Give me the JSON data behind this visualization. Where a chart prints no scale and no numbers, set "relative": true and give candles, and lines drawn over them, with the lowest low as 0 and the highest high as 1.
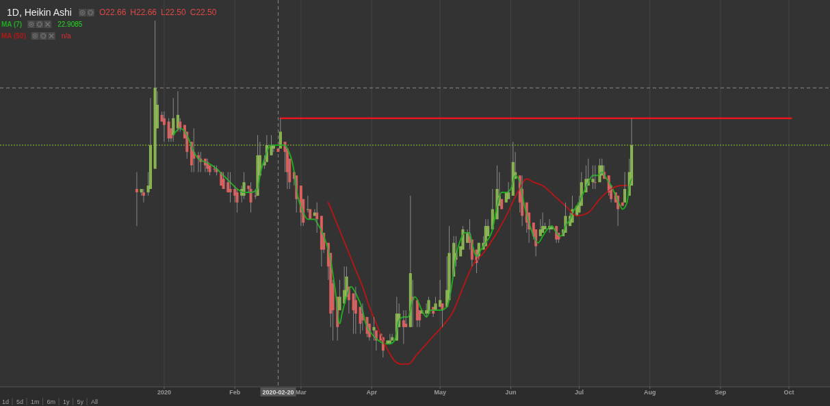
{
  "chart_data": {
    "type": "candlestick",
    "title": "1D, Heikin Ashi",
    "relative": true,
    "xlim": [
      "2019-10-21",
      "2020-10-19"
    ],
    "xticks": [
      {
        "value": "2020-01-01",
        "label": "2020"
      },
      {
        "value": "2020-02-01",
        "label": "Feb"
      },
      {
        "value": "2020-03-01",
        "label": "Mar"
      },
      {
        "value": "2020-04-01",
        "label": "Apr"
      },
      {
        "value": "2020-05-01",
        "label": "May"
      },
      {
        "value": "2020-06-01",
        "label": "Jun"
      },
      {
        "value": "2020-07-01",
        "label": "Jul"
      },
      {
        "value": "2020-08-01",
        "label": "Aug"
      },
      {
        "value": "2020-09-01",
        "label": "Sep"
      },
      {
        "value": "2020-10-01",
        "label": "Oct"
      }
    ],
    "grid": "x",
    "legend": "top left",
    "x": [
      "2019-12-20",
      "2019-12-22",
      "2019-12-23",
      "2019-12-25",
      "2019-12-26",
      "2019-12-28",
      "2019-12-29",
      "2019-12-31",
      "2020-01-01",
      "2020-01-03",
      "2020-01-04",
      "2020-01-05",
      "2020-01-07",
      "2020-01-08",
      "2020-01-10",
      "2020-01-11",
      "2020-01-13",
      "2020-01-14",
      "2020-01-16",
      "2020-01-17",
      "2020-01-19",
      "2020-01-20",
      "2020-01-21",
      "2020-01-23",
      "2020-01-24",
      "2020-01-26",
      "2020-01-27",
      "2020-01-29",
      "2020-01-30",
      "2020-02-01",
      "2020-02-02",
      "2020-02-04",
      "2020-02-05",
      "2020-02-07",
      "2020-02-08",
      "2020-02-10",
      "2020-02-11",
      "2020-02-12",
      "2020-02-14",
      "2020-02-15",
      "2020-02-17",
      "2020-02-18",
      "2020-02-20",
      "2020-02-21",
      "2020-02-23",
      "2020-02-24",
      "2020-02-25",
      "2020-02-27",
      "2020-02-28",
      "2020-03-01",
      "2020-03-02",
      "2020-03-04",
      "2020-03-05",
      "2020-03-07",
      "2020-03-08",
      "2020-03-10",
      "2020-03-11",
      "2020-03-13",
      "2020-03-14",
      "2020-03-15",
      "2020-03-17",
      "2020-03-18",
      "2020-03-20",
      "2020-03-21",
      "2020-03-22",
      "2020-03-24",
      "2020-03-25",
      "2020-03-27",
      "2020-03-28",
      "2020-03-30",
      "2020-03-31",
      "2020-04-02",
      "2020-04-03",
      "2020-04-05",
      "2020-04-06",
      "2020-04-08",
      "2020-04-09",
      "2020-04-10",
      "2020-04-12",
      "2020-04-13",
      "2020-04-15",
      "2020-04-16",
      "2020-04-18",
      "2020-04-19",
      "2020-04-21",
      "2020-04-22",
      "2020-04-23",
      "2020-04-25",
      "2020-04-26",
      "2020-04-28",
      "2020-04-29",
      "2020-05-01",
      "2020-05-02",
      "2020-05-04",
      "2020-05-05",
      "2020-05-07",
      "2020-05-08",
      "2020-05-10",
      "2020-05-11",
      "2020-05-13",
      "2020-05-14",
      "2020-05-15",
      "2020-05-17",
      "2020-05-18",
      "2020-05-20",
      "2020-05-21",
      "2020-05-22",
      "2020-05-24",
      "2020-05-26",
      "2020-05-27",
      "2020-05-28",
      "2020-05-30",
      "2020-05-31",
      "2020-06-02",
      "2020-06-03",
      "2020-06-05",
      "2020-06-06",
      "2020-06-08",
      "2020-06-09",
      "2020-06-11",
      "2020-06-12",
      "2020-06-14",
      "2020-06-15",
      "2020-06-16",
      "2020-06-18",
      "2020-06-19",
      "2020-06-21",
      "2020-06-22",
      "2020-06-24",
      "2020-06-25",
      "2020-06-27",
      "2020-06-28",
      "2020-06-30",
      "2020-07-01",
      "2020-07-02",
      "2020-07-04",
      "2020-07-05",
      "2020-07-07",
      "2020-07-08",
      "2020-07-10",
      "2020-07-11",
      "2020-07-12",
      "2020-07-14",
      "2020-07-15",
      "2020-07-17",
      "2020-07-18",
      "2020-07-20",
      "2020-07-21",
      "2020-07-23",
      "2020-07-24"
    ],
    "ohlc": [
      [
        0.5,
        0.55,
        0.39,
        0.49
      ],
      [
        0.49,
        0.5,
        0.48,
        0.5
      ],
      [
        0.49,
        0.5,
        0.46,
        0.48
      ],
      [
        0.49,
        0.55,
        0.48,
        0.51
      ],
      [
        0.5,
        0.77,
        0.5,
        0.63
      ],
      [
        0.56,
        1,
        0.56,
        0.8
      ],
      [
        0.68,
        0.79,
        0.68,
        0.75
      ],
      [
        0.72,
        0.73,
        0.7,
        0.7
      ],
      [
        0.71,
        0.73,
        0.64,
        0.69
      ],
      [
        0.7,
        0.71,
        0.64,
        0.65
      ],
      [
        0.68,
        0.68,
        0.64,
        0.65
      ],
      [
        0.66,
        0.77,
        0.64,
        0.71
      ],
      [
        0.68,
        0.79,
        0.67,
        0.72
      ],
      [
        0.7,
        0.71,
        0.67,
        0.68
      ],
      [
        0.69,
        0.69,
        0.65,
        0.65
      ],
      [
        0.67,
        0.67,
        0.59,
        0.61
      ],
      [
        0.64,
        0.64,
        0.55,
        0.57
      ],
      [
        0.61,
        0.68,
        0.55,
        0.59
      ],
      [
        0.6,
        0.61,
        0.55,
        0.59
      ],
      [
        0.59,
        0.61,
        0.55,
        0.58
      ],
      [
        0.59,
        0.59,
        0.55,
        0.57
      ],
      [
        0.58,
        0.59,
        0.55,
        0.56
      ],
      [
        0.57,
        0.57,
        0.54,
        0.55
      ],
      [
        0.56,
        0.57,
        0.55,
        0.56
      ],
      [
        0.56,
        0.57,
        0.54,
        0.55
      ],
      [
        0.55,
        0.55,
        0.51,
        0.51
      ],
      [
        0.53,
        0.55,
        0.5,
        0.5
      ],
      [
        0.52,
        0.55,
        0.49,
        0.49
      ],
      [
        0.5,
        0.55,
        0.46,
        0.49
      ],
      [
        0.5,
        0.51,
        0.46,
        0.48
      ],
      [
        0.49,
        0.5,
        0.43,
        0.46
      ],
      [
        0.48,
        0.51,
        0.46,
        0.5
      ],
      [
        0.48,
        0.55,
        0.47,
        0.52
      ],
      [
        0.51,
        0.51,
        0.49,
        0.5
      ],
      [
        0.5,
        0.52,
        0.43,
        0.46
      ],
      [
        0.48,
        0.5,
        0.47,
        0.48
      ],
      [
        0.48,
        0.66,
        0.48,
        0.6
      ],
      [
        0.54,
        0.64,
        0.54,
        0.6
      ],
      [
        0.57,
        0.6,
        0.56,
        0.58
      ],
      [
        0.58,
        0.66,
        0.58,
        0.63
      ],
      [
        0.6,
        0.66,
        0.6,
        0.63
      ],
      [
        0.62,
        0.63,
        0.61,
        0.63
      ],
      [
        0.62,
        0.62,
        0.61,
        0.61
      ],
      [
        0.62,
        0.71,
        0.62,
        0.67
      ],
      [
        0.64,
        0.64,
        0.55,
        0.61
      ],
      [
        0.62,
        0.62,
        0.5,
        0.55
      ],
      [
        0.59,
        0.59,
        0.5,
        0.52
      ],
      [
        0.55,
        0.55,
        0.51,
        0.53
      ],
      [
        0.54,
        0.54,
        0.43,
        0.47
      ],
      [
        0.51,
        0.51,
        0.39,
        0.43
      ],
      [
        0.47,
        0.47,
        0.39,
        0.4
      ],
      [
        0.44,
        0.48,
        0.43,
        0.44
      ],
      [
        0.44,
        0.44,
        0.41,
        0.41
      ],
      [
        0.42,
        0.44,
        0.42,
        0.43
      ],
      [
        0.43,
        0.46,
        0.37,
        0.41
      ],
      [
        0.42,
        0.42,
        0.27,
        0.32
      ],
      [
        0.37,
        0.37,
        0.31,
        0.32
      ],
      [
        0.34,
        0.34,
        0.23,
        0.27
      ],
      [
        0.31,
        0.31,
        0.09,
        0.13
      ],
      [
        0.22,
        0.23,
        0.05,
        0.14
      ],
      [
        0.18,
        0.18,
        0.05,
        0.09
      ],
      [
        0.14,
        0.23,
        0.14,
        0.18
      ],
      [
        0.16,
        0.27,
        0.16,
        0.2
      ],
      [
        0.18,
        0.27,
        0.18,
        0.24
      ],
      [
        0.21,
        0.21,
        0.13,
        0.17
      ],
      [
        0.19,
        0.19,
        0.07,
        0.14
      ],
      [
        0.17,
        0.21,
        0.07,
        0.13
      ],
      [
        0.15,
        0.15,
        0.07,
        0.1
      ],
      [
        0.13,
        0.16,
        0.08,
        0.11
      ],
      [
        0.12,
        0.12,
        0.06,
        0.07
      ],
      [
        0.1,
        0.1,
        0.05,
        0.06
      ],
      [
        0.08,
        0.12,
        0.05,
        0.09
      ],
      [
        0.08,
        0.08,
        0.02,
        0.05
      ],
      [
        0.07,
        0.07,
        0.05,
        0.05
      ],
      [
        0.06,
        0.06,
        0,
        0.02
      ],
      [
        0.04,
        0.05,
        0.04,
        0.05
      ],
      [
        0.04,
        0.07,
        0.04,
        0.05
      ],
      [
        0.05,
        0.07,
        0.05,
        0.06
      ],
      [
        0.05,
        0.18,
        0.05,
        0.13
      ],
      [
        0.09,
        0.16,
        0.09,
        0.13
      ],
      [
        0.11,
        0.14,
        0.04,
        0.09
      ],
      [
        0.1,
        0.14,
        0.09,
        0.09
      ],
      [
        0.09,
        0.48,
        0.09,
        0.25
      ],
      [
        0.18,
        0.23,
        0.09,
        0.17
      ],
      [
        0.17,
        0.17,
        0.09,
        0.11
      ],
      [
        0.14,
        0.14,
        0.09,
        0.11
      ],
      [
        0.13,
        0.14,
        0.13,
        0.14
      ],
      [
        0.13,
        0.16,
        0.12,
        0.14
      ],
      [
        0.13,
        0.18,
        0.13,
        0.17
      ],
      [
        0.15,
        0.15,
        0.12,
        0.13
      ],
      [
        0.14,
        0.18,
        0.14,
        0.16
      ],
      [
        0.15,
        0.23,
        0.15,
        0.17
      ],
      [
        0.16,
        0.16,
        0.09,
        0.14
      ],
      [
        0.15,
        0.3,
        0.15,
        0.2
      ],
      [
        0.17,
        0.39,
        0.17,
        0.31
      ],
      [
        0.24,
        0.36,
        0.24,
        0.34
      ],
      [
        0.29,
        0.36,
        0.27,
        0.31
      ],
      [
        0.3,
        0.33,
        0.3,
        0.33
      ],
      [
        0.32,
        0.39,
        0.32,
        0.38
      ],
      [
        0.34,
        0.38,
        0.34,
        0.37
      ],
      [
        0.36,
        0.41,
        0.32,
        0.34
      ],
      [
        0.35,
        0.35,
        0.27,
        0.29
      ],
      [
        0.32,
        0.32,
        0.25,
        0.28
      ],
      [
        0.3,
        0.34,
        0.29,
        0.34
      ],
      [
        0.32,
        0.36,
        0.32,
        0.34
      ],
      [
        0.33,
        0.41,
        0.33,
        0.39
      ],
      [
        0.36,
        0.41,
        0.36,
        0.39
      ],
      [
        0.38,
        0.5,
        0.38,
        0.44
      ],
      [
        0.41,
        0.57,
        0.41,
        0.5
      ],
      [
        0.45,
        0.55,
        0.45,
        0.48
      ],
      [
        0.47,
        0.47,
        0.44,
        0.44
      ],
      [
        0.46,
        0.49,
        0.46,
        0.49
      ],
      [
        0.47,
        0.52,
        0.47,
        0.49
      ],
      [
        0.48,
        0.64,
        0.48,
        0.58
      ],
      [
        0.53,
        0.61,
        0.53,
        0.55
      ],
      [
        0.54,
        0.54,
        0.43,
        0.46
      ],
      [
        0.5,
        0.54,
        0.39,
        0.42
      ],
      [
        0.46,
        0.46,
        0.37,
        0.4
      ],
      [
        0.43,
        0.43,
        0.34,
        0.38
      ],
      [
        0.4,
        0.4,
        0.35,
        0.36
      ],
      [
        0.38,
        0.38,
        0.3,
        0.33
      ],
      [
        0.36,
        0.41,
        0.36,
        0.38
      ],
      [
        0.37,
        0.43,
        0.37,
        0.39
      ],
      [
        0.38,
        0.4,
        0.38,
        0.39
      ],
      [
        0.38,
        0.41,
        0.37,
        0.39
      ],
      [
        0.38,
        0.39,
        0.38,
        0.39
      ],
      [
        0.39,
        0.39,
        0.34,
        0.35
      ],
      [
        0.37,
        0.37,
        0.34,
        0.35
      ],
      [
        0.36,
        0.38,
        0.36,
        0.38
      ],
      [
        0.37,
        0.46,
        0.37,
        0.42
      ],
      [
        0.39,
        0.43,
        0.39,
        0.42
      ],
      [
        0.4,
        0.48,
        0.4,
        0.44
      ],
      [
        0.42,
        0.45,
        0.42,
        0.45
      ],
      [
        0.43,
        0.48,
        0.43,
        0.46
      ],
      [
        0.45,
        0.55,
        0.45,
        0.52
      ],
      [
        0.49,
        0.57,
        0.49,
        0.53
      ],
      [
        0.51,
        0.59,
        0.51,
        0.53
      ],
      [
        0.52,
        0.57,
        0.5,
        0.53
      ],
      [
        0.52,
        0.57,
        0.5,
        0.52
      ],
      [
        0.52,
        0.59,
        0.52,
        0.57
      ],
      [
        0.54,
        0.59,
        0.54,
        0.57
      ],
      [
        0.55,
        0.57,
        0.53,
        0.53
      ],
      [
        0.54,
        0.54,
        0.48,
        0.49
      ],
      [
        0.51,
        0.51,
        0.46,
        0.47
      ],
      [
        0.49,
        0.49,
        0.46,
        0.46
      ],
      [
        0.48,
        0.48,
        0.39,
        0.44
      ],
      [
        0.46,
        0.46,
        0.45,
        0.45
      ],
      [
        0.46,
        0.55,
        0.46,
        0.5
      ],
      [
        0.48,
        0.59,
        0.48,
        0.55
      ],
      [
        0.51,
        0.71,
        0.51,
        0.63
      ]
    ],
    "colors": [
      "#ef5350",
      "#8cc63e",
      "#ef5350",
      "#8cc63e",
      "#8cc63e",
      "#8cc63e",
      "#8cc63e",
      "#ef5350",
      "#ef5350",
      "#ef5350",
      "#ef5350",
      "#8cc63e",
      "#8cc63e",
      "#ef5350",
      "#ef5350",
      "#ef5350",
      "#ef5350",
      "#ef5350",
      "#ef5350",
      "#ef5350",
      "#ef5350",
      "#ef5350",
      "#ef5350",
      "#ef5350",
      "#ef5350",
      "#ef5350",
      "#ef5350",
      "#ef5350",
      "#ef5350",
      "#ef5350",
      "#ef5350",
      "#8cc63e",
      "#8cc63e",
      "#ef5350",
      "#ef5350",
      "#ef5350",
      "#8cc63e",
      "#8cc63e",
      "#8cc63e",
      "#8cc63e",
      "#8cc63e",
      "#8cc63e",
      "#ef5350",
      "#8cc63e",
      "#ef5350",
      "#ef5350",
      "#ef5350",
      "#ef5350",
      "#ef5350",
      "#ef5350",
      "#ef5350",
      "#8cc63e",
      "#ef5350",
      "#8cc63e",
      "#ef5350",
      "#ef5350",
      "#ef5350",
      "#ef5350",
      "#ef5350",
      "#ef5350",
      "#ef5350",
      "#8cc63e",
      "#8cc63e",
      "#8cc63e",
      "#ef5350",
      "#ef5350",
      "#ef5350",
      "#ef5350",
      "#ef5350",
      "#ef5350",
      "#ef5350",
      "#8cc63e",
      "#ef5350",
      "#ef5350",
      "#ef5350",
      "#8cc63e",
      "#8cc63e",
      "#8cc63e",
      "#8cc63e",
      "#8cc63e",
      "#ef5350",
      "#ef5350",
      "#8cc63e",
      "#ef5350",
      "#ef5350",
      "#ef5350",
      "#8cc63e",
      "#8cc63e",
      "#8cc63e",
      "#ef5350",
      "#8cc63e",
      "#8cc63e",
      "#ef5350",
      "#8cc63e",
      "#8cc63e",
      "#8cc63e",
      "#8cc63e",
      "#8cc63e",
      "#8cc63e",
      "#8cc63e",
      "#ef5350",
      "#ef5350",
      "#ef5350",
      "#8cc63e",
      "#8cc63e",
      "#8cc63e",
      "#8cc63e",
      "#8cc63e",
      "#8cc63e",
      "#8cc63e",
      "#ef5350",
      "#8cc63e",
      "#8cc63e",
      "#8cc63e",
      "#8cc63e",
      "#ef5350",
      "#ef5350",
      "#ef5350",
      "#ef5350",
      "#ef5350",
      "#ef5350",
      "#8cc63e",
      "#8cc63e",
      "#8cc63e",
      "#8cc63e",
      "#8cc63e",
      "#ef5350",
      "#ef5350",
      "#8cc63e",
      "#8cc63e",
      "#8cc63e",
      "#8cc63e",
      "#8cc63e",
      "#8cc63e",
      "#8cc63e",
      "#8cc63e",
      "#8cc63e",
      "#8cc63e",
      "#ef5350",
      "#8cc63e",
      "#8cc63e",
      "#ef5350",
      "#ef5350",
      "#ef5350",
      "#ef5350",
      "#ef5350",
      "#ef5350",
      "#8cc63e",
      "#8cc63e",
      "#8cc63e"
    ],
    "series": [
      {
        "name": "MA (7)",
        "type": "line",
        "color": "#1faa1f",
        "x": [
          "2020-01-05",
          "2020-01-08",
          "2020-01-11",
          "2020-01-14",
          "2020-01-16",
          "2020-01-19",
          "2020-01-22",
          "2020-01-24",
          "2020-01-27",
          "2020-01-30",
          "2020-02-02",
          "2020-02-05",
          "2020-02-08",
          "2020-02-11",
          "2020-02-12",
          "2020-02-14",
          "2020-02-17",
          "2020-02-18",
          "2020-02-20",
          "2020-02-21",
          "2020-02-23",
          "2020-02-24",
          "2020-02-27",
          "2020-02-28",
          "2020-03-02",
          "2020-03-04",
          "2020-03-07",
          "2020-03-08",
          "2020-03-11",
          "2020-03-14",
          "2020-03-16",
          "2020-03-18",
          "2020-03-19",
          "2020-03-22",
          "2020-03-23",
          "2020-03-25",
          "2020-03-28",
          "2020-03-29",
          "2020-04-01",
          "2020-04-04",
          "2020-04-07",
          "2020-04-09",
          "2020-04-11",
          "2020-04-13",
          "2020-04-15",
          "2020-04-17",
          "2020-04-19",
          "2020-04-20",
          "2020-04-23",
          "2020-04-25",
          "2020-04-27",
          "2020-05-01",
          "2020-05-04",
          "2020-05-09",
          "2020-05-12",
          "2020-05-14",
          "2020-05-15",
          "2020-05-17",
          "2020-05-19",
          "2020-05-21",
          "2020-05-24",
          "2020-05-26",
          "2020-05-28",
          "2020-05-30",
          "2020-06-01",
          "2020-06-03",
          "2020-06-05",
          "2020-06-07",
          "2020-06-09",
          "2020-06-11",
          "2020-06-13",
          "2020-06-15",
          "2020-06-17",
          "2020-06-19",
          "2020-06-21",
          "2020-06-23",
          "2020-06-25",
          "2020-06-27",
          "2020-06-29",
          "2020-07-01",
          "2020-07-03",
          "2020-07-05",
          "2020-07-07",
          "2020-07-09",
          "2020-07-11",
          "2020-07-13",
          "2020-07-15",
          "2020-07-17",
          "2020-07-19",
          "2020-07-20",
          "2020-07-22",
          "2020-07-23",
          "2020-07-24"
        ],
        "values": [
          0.66,
          0.68,
          0.66,
          0.61,
          0.59,
          0.58,
          0.57,
          0.56,
          0.54,
          0.52,
          0.5,
          0.49,
          0.49,
          0.5,
          0.54,
          0.59,
          0.63,
          0.63,
          0.63,
          0.63,
          0.63,
          0.62,
          0.55,
          0.5,
          0.43,
          0.41,
          0.41,
          0.4,
          0.36,
          0.29,
          0.2,
          0.1,
          0.13,
          0.2,
          0.21,
          0.19,
          0.14,
          0.11,
          0.07,
          0.05,
          0.04,
          0.04,
          0.05,
          0.11,
          0.12,
          0.12,
          0.17,
          0.18,
          0.14,
          0.12,
          0.14,
          0.14,
          0.15,
          0.33,
          0.37,
          0.37,
          0.34,
          0.3,
          0.32,
          0.34,
          0.38,
          0.45,
          0.49,
          0.49,
          0.5,
          0.54,
          0.52,
          0.45,
          0.4,
          0.36,
          0.34,
          0.36,
          0.38,
          0.39,
          0.37,
          0.36,
          0.39,
          0.41,
          0.44,
          0.46,
          0.49,
          0.52,
          0.54,
          0.54,
          0.55,
          0.53,
          0.51,
          0.48,
          0.45,
          0.44,
          0.46,
          0.51,
          0.53
        ]
      },
      {
        "name": "MA (50)",
        "type": "line",
        "color": "#b01818",
        "x": [
          "2020-03-13",
          "2020-03-16",
          "2020-03-19",
          "2020-03-22",
          "2020-03-25",
          "2020-03-28",
          "2020-03-31",
          "2020-04-03",
          "2020-04-06",
          "2020-04-09",
          "2020-04-11",
          "2020-04-14",
          "2020-04-17",
          "2020-04-21",
          "2020-04-25",
          "2020-04-29",
          "2020-05-03",
          "2020-05-07",
          "2020-05-10",
          "2020-05-13",
          "2020-05-15",
          "2020-05-20",
          "2020-05-25",
          "2020-05-30",
          "2020-06-04",
          "2020-06-08",
          "2020-06-11",
          "2020-06-15",
          "2020-06-20",
          "2020-06-25",
          "2020-06-30",
          "2020-07-05",
          "2020-07-10",
          "2020-07-15",
          "2020-07-20",
          "2020-07-22"
        ],
        "values": [
          0.46,
          0.41,
          0.36,
          0.31,
          0.26,
          0.21,
          0.15,
          0.1,
          0.05,
          0.01,
          -0.01,
          -0.02,
          -0.02,
          0.01,
          0.04,
          0.07,
          0.1,
          0.14,
          0.19,
          0.24,
          0.27,
          0.31,
          0.36,
          0.42,
          0.49,
          0.53,
          0.52,
          0.51,
          0.48,
          0.45,
          0.42,
          0.43,
          0.47,
          0.5,
          0.51,
          0.51
        ]
      },
      {
        "type": "line",
        "color": "#e8151b",
        "x": [
          "2020-02-21",
          "2020-10-02"
        ],
        "values": [
          0.71,
          0.71
        ]
      }
    ],
    "ref_lines": [
      {
        "axis": "y",
        "value": 0.63,
        "color": "#9acd32",
        "line_style": "dotted"
      },
      {
        "axis": "y",
        "value": 0.8,
        "color": "#8a8a8a",
        "line_style": "dashed"
      },
      {
        "axis": "x",
        "value": "2020-02-20",
        "color": "#8a8a8a",
        "line_style": "dashed"
      }
    ],
    "annotations": [
      "O22.66",
      "H22.66",
      "L22.50",
      "C22.50",
      "22.9085",
      "n/a",
      "1d",
      "5d",
      "1m",
      "6m",
      "1y",
      "5y",
      "All",
      "2020-02-20"
    ]
  }
}
